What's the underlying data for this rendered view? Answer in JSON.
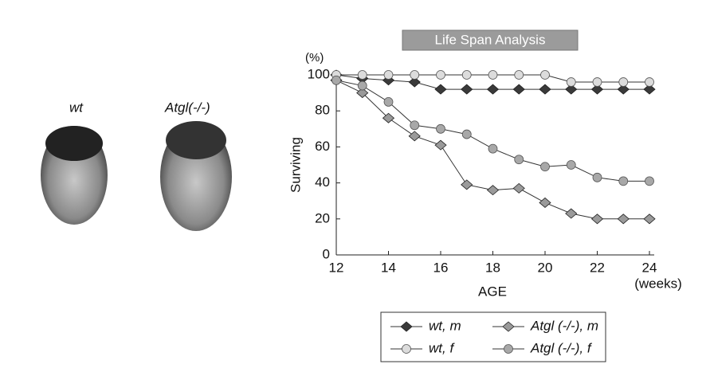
{
  "images": [
    {
      "label": "wt"
    },
    {
      "label": "Atgl(-/-)"
    }
  ],
  "chart_data": {
    "type": "line",
    "title": "Life Span Analysis",
    "y_unit": "(%)",
    "ylabel": "Surviving",
    "xlabel": "AGE",
    "x_unit": "(weeks)",
    "x": [
      12,
      13,
      14,
      15,
      16,
      17,
      18,
      19,
      20,
      21,
      22,
      23,
      24
    ],
    "xlim": [
      12,
      24
    ],
    "xticks": [
      12,
      14,
      16,
      18,
      20,
      22,
      24
    ],
    "ylim": [
      0,
      100
    ],
    "yticks": [
      0,
      20,
      40,
      60,
      80,
      100
    ],
    "grid": false,
    "series": [
      {
        "name": "wt, m",
        "color": "#3a3a3a",
        "marker": "diamond",
        "values": [
          100,
          98,
          97,
          96,
          92,
          92,
          92,
          92,
          92,
          92,
          92,
          92,
          92
        ]
      },
      {
        "name": "Atgl (-/-), m",
        "color": "#9a9a9a",
        "marker": "diamond",
        "values": [
          97,
          90,
          76,
          66,
          61,
          39,
          36,
          37,
          29,
          23,
          20,
          20,
          20
        ]
      },
      {
        "name": "wt, f",
        "color": "#dcdcdc",
        "marker": "circle",
        "values": [
          100,
          100,
          100,
          100,
          100,
          100,
          100,
          100,
          100,
          96,
          96,
          96,
          96
        ]
      },
      {
        "name": "Atgl (-/-), f",
        "color": "#a8a8a8",
        "marker": "circle",
        "values": [
          97,
          94,
          85,
          72,
          70,
          67,
          59,
          53,
          49,
          50,
          43,
          41,
          41
        ]
      }
    ]
  }
}
